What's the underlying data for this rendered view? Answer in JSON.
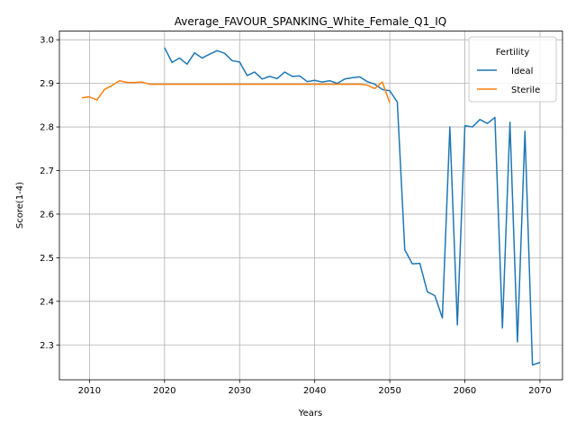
{
  "chart_data": {
    "type": "line",
    "title": "Average_FAVOUR_SPANKING_White_Female_Q1_IQ",
    "xlabel": "Years",
    "ylabel": "Score(1-4)",
    "xlim": [
      2006,
      2073
    ],
    "ylim": [
      2.22,
      3.02
    ],
    "x_ticks": [
      2010,
      2020,
      2030,
      2040,
      2050,
      2060,
      2070
    ],
    "y_ticks": [
      2.3,
      2.4,
      2.5,
      2.6,
      2.7,
      2.8,
      2.9,
      3.0
    ],
    "grid": true,
    "legend": {
      "title": "Fertility",
      "placement": "top-right"
    },
    "series": [
      {
        "name": "Ideal",
        "color": "#1f77b4",
        "x": [
          2020,
          2021,
          2022,
          2023,
          2024,
          2025,
          2026,
          2027,
          2028,
          2029,
          2030,
          2031,
          2032,
          2033,
          2034,
          2035,
          2036,
          2037,
          2038,
          2039,
          2040,
          2041,
          2042,
          2043,
          2044,
          2045,
          2046,
          2047,
          2048,
          2049,
          2050,
          2051,
          2052,
          2053,
          2054,
          2055,
          2056,
          2057,
          2058,
          2059,
          2060,
          2061,
          2062,
          2063,
          2064,
          2065,
          2066,
          2067,
          2068,
          2069,
          2070
        ],
        "values": [
          2.982,
          2.948,
          2.958,
          2.944,
          2.97,
          2.958,
          2.967,
          2.975,
          2.969,
          2.952,
          2.949,
          2.918,
          2.926,
          2.91,
          2.916,
          2.911,
          2.926,
          2.916,
          2.917,
          2.904,
          2.907,
          2.903,
          2.906,
          2.9,
          2.91,
          2.913,
          2.915,
          2.904,
          2.898,
          2.886,
          2.883,
          2.857,
          2.518,
          2.486,
          2.487,
          2.422,
          2.413,
          2.362,
          2.8,
          2.346,
          2.803,
          2.8,
          2.817,
          2.808,
          2.822,
          2.339,
          2.811,
          2.307,
          2.79,
          2.254,
          2.26
        ]
      },
      {
        "name": "Sterile",
        "color": "#ff7f0e",
        "x": [
          2009,
          2010,
          2011,
          2012,
          2013,
          2014,
          2015,
          2016,
          2017,
          2018,
          2019,
          2020,
          2021,
          2022,
          2023,
          2024,
          2025,
          2026,
          2027,
          2028,
          2029,
          2030,
          2031,
          2032,
          2033,
          2034,
          2035,
          2036,
          2037,
          2038,
          2039,
          2040,
          2041,
          2042,
          2043,
          2044,
          2045,
          2046,
          2047,
          2048,
          2049,
          2050
        ],
        "values": [
          2.867,
          2.869,
          2.862,
          2.886,
          2.895,
          2.906,
          2.902,
          2.902,
          2.903,
          2.898,
          2.898,
          2.898,
          2.898,
          2.898,
          2.898,
          2.898,
          2.898,
          2.898,
          2.898,
          2.898,
          2.898,
          2.898,
          2.898,
          2.898,
          2.898,
          2.898,
          2.898,
          2.898,
          2.898,
          2.898,
          2.898,
          2.898,
          2.898,
          2.898,
          2.898,
          2.898,
          2.898,
          2.898,
          2.896,
          2.888,
          2.903,
          2.855
        ]
      }
    ]
  }
}
